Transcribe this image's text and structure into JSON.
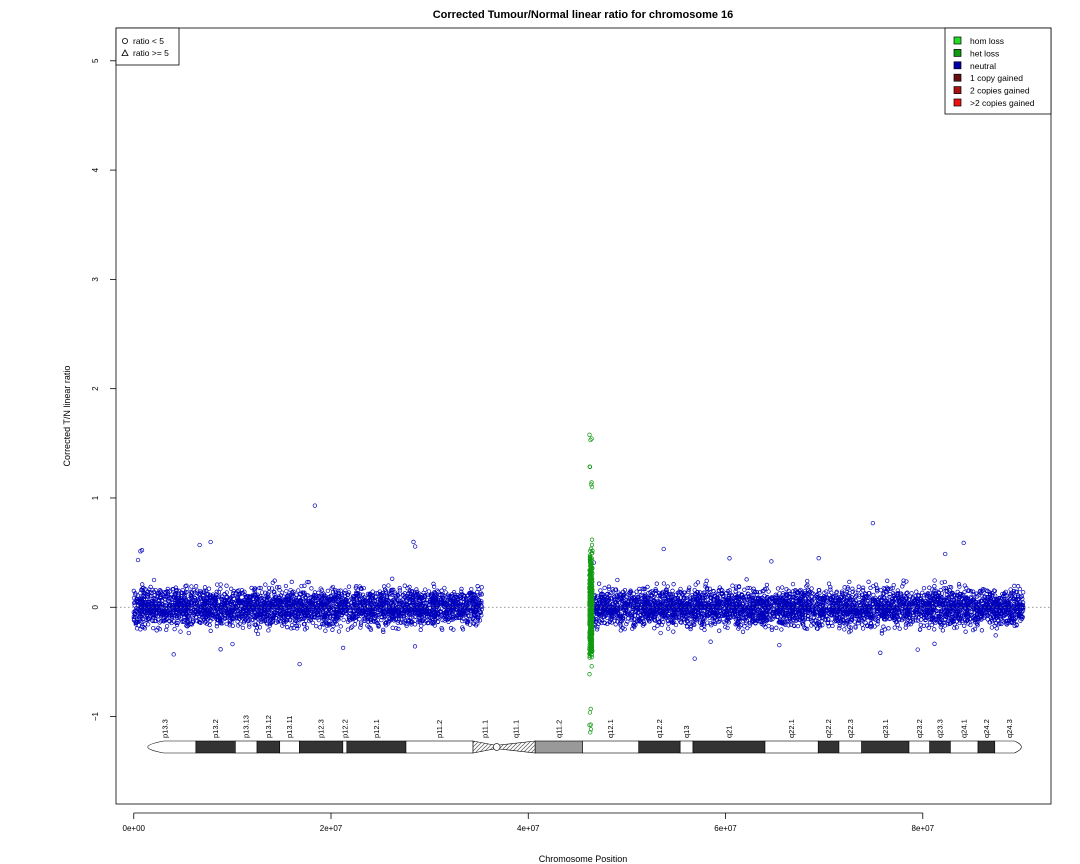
{
  "chart_data": {
    "type": "scatter",
    "title": "Corrected Tumour/Normal linear ratio for chromosome  16",
    "xlabel": "Chromosome Position",
    "ylabel": "Corrected T/N linear ratio",
    "xlim": [
      -1800000,
      93000000
    ],
    "ylim": [
      -1.8,
      5.3
    ],
    "x_ticks": [
      {
        "value": 0,
        "label": "0e+00"
      },
      {
        "value": 20000000,
        "label": "2e+07"
      },
      {
        "value": 40000000,
        "label": "4e+07"
      },
      {
        "value": 60000000,
        "label": "6e+07"
      },
      {
        "value": 80000000,
        "label": "8e+07"
      }
    ],
    "y_ticks": [
      {
        "value": -1,
        "label": "−1"
      },
      {
        "value": 0,
        "label": "0"
      },
      {
        "value": 1,
        "label": "1"
      },
      {
        "value": 2,
        "label": "2"
      },
      {
        "value": 3,
        "label": "3"
      },
      {
        "value": 4,
        "label": "4"
      },
      {
        "value": 5,
        "label": "5"
      }
    ],
    "reference_line": 0,
    "shape_legend": {
      "placement": "top-left",
      "items": [
        {
          "symbol": "circle",
          "label": "ratio < 5"
        },
        {
          "symbol": "triangle",
          "label": "ratio >= 5"
        }
      ]
    },
    "color_legend": {
      "placement": "top-right",
      "items": [
        {
          "label": "hom loss",
          "color": "#22dd22"
        },
        {
          "label": "het loss",
          "color": "#119911"
        },
        {
          "label": "neutral",
          "color": "#0000aa"
        },
        {
          "label": "1 copy gained",
          "color": "#661111"
        },
        {
          "label": "2 copies gained",
          "color": "#aa1111"
        },
        {
          "label": ">2 copies gained",
          "color": "#ee1111"
        }
      ]
    },
    "series": [
      {
        "name": "neutral",
        "color": "#0000bb",
        "segments": [
          {
            "x_range": [
              0,
              35300000
            ],
            "mean": 0,
            "spread": 0.17,
            "max_outlier": 0.93,
            "min_outlier": -0.52
          },
          {
            "x_range": [
              46500000,
              90200000
            ],
            "mean": 0,
            "spread": 0.17,
            "max_outlier": 0.77,
            "min_outlier": -0.47
          }
        ]
      },
      {
        "name": "het loss",
        "color": "#119911",
        "segments": [
          {
            "x_range": [
              46200000,
              46500000
            ],
            "mean": 0,
            "spread": 0.45,
            "max_outlier": 1.1,
            "min_outlier": -0.93
          }
        ]
      }
    ],
    "ideogram": {
      "start": 0,
      "end": 90300000,
      "centromere": 36800000,
      "bands": [
        {
          "name": "p13.3",
          "start": 0,
          "end": 6300000,
          "stain": "gneg"
        },
        {
          "name": "p13.2",
          "start": 6300000,
          "end": 10300000,
          "stain": "gpos"
        },
        {
          "name": "p13.13",
          "start": 10300000,
          "end": 12500000,
          "stain": "gneg"
        },
        {
          "name": "p13.12",
          "start": 12500000,
          "end": 14800000,
          "stain": "gpos"
        },
        {
          "name": "p13.11",
          "start": 14800000,
          "end": 16800000,
          "stain": "gneg"
        },
        {
          "name": "p12.3",
          "start": 16800000,
          "end": 21200000,
          "stain": "gpos"
        },
        {
          "name": "p12.2",
          "start": 21200000,
          "end": 21600000,
          "stain": "gneg"
        },
        {
          "name": "p12.1",
          "start": 21600000,
          "end": 27600000,
          "stain": "gpos"
        },
        {
          "name": "p11.2",
          "start": 27600000,
          "end": 34400000,
          "stain": "gneg"
        },
        {
          "name": "p11.1",
          "start": 34400000,
          "end": 36800000,
          "stain": "acen"
        },
        {
          "name": "q11.1",
          "start": 36800000,
          "end": 40700000,
          "stain": "acen"
        },
        {
          "name": "q11.2",
          "start": 40700000,
          "end": 45500000,
          "stain": "gvar"
        },
        {
          "name": "q12.1",
          "start": 45500000,
          "end": 51200000,
          "stain": "gneg"
        },
        {
          "name": "q12.2",
          "start": 51200000,
          "end": 55400000,
          "stain": "gpos"
        },
        {
          "name": "q13",
          "start": 55400000,
          "end": 56700000,
          "stain": "gneg"
        },
        {
          "name": "q21",
          "start": 56700000,
          "end": 64000000,
          "stain": "gpos"
        },
        {
          "name": "q22.1",
          "start": 64000000,
          "end": 69400000,
          "stain": "gneg"
        },
        {
          "name": "q22.2",
          "start": 69400000,
          "end": 71500000,
          "stain": "gpos"
        },
        {
          "name": "q22.3",
          "start": 71500000,
          "end": 73800000,
          "stain": "gneg"
        },
        {
          "name": "q23.1",
          "start": 73800000,
          "end": 78600000,
          "stain": "gpos"
        },
        {
          "name": "q23.2",
          "start": 78600000,
          "end": 80700000,
          "stain": "gneg"
        },
        {
          "name": "q23.3",
          "start": 80700000,
          "end": 82800000,
          "stain": "gpos"
        },
        {
          "name": "q24.1",
          "start": 82800000,
          "end": 85600000,
          "stain": "gneg"
        },
        {
          "name": "q24.2",
          "start": 85600000,
          "end": 87300000,
          "stain": "gpos"
        },
        {
          "name": "q24.3",
          "start": 87300000,
          "end": 90300000,
          "stain": "gneg"
        }
      ]
    }
  }
}
